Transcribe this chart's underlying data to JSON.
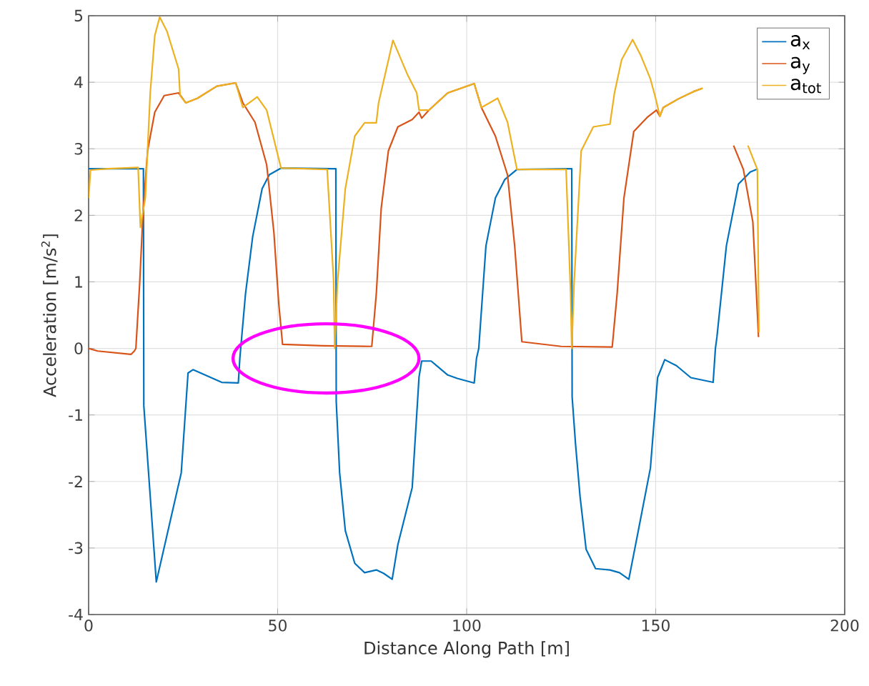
{
  "chart_data": {
    "type": "line",
    "xlabel": "Distance Along Path [m]",
    "ylabel": "Acceleration [m/s$^{2}$]",
    "xlim": [
      0,
      200
    ],
    "ylim": [
      -4,
      5
    ],
    "xticks": [
      0,
      50,
      100,
      150,
      200
    ],
    "yticks": [
      -4,
      -3,
      -2,
      -1,
      0,
      1,
      2,
      3,
      4,
      5
    ],
    "grid": true,
    "legend": "top right",
    "line_style": "solid",
    "marker": "none",
    "series": [
      {
        "name": "a$_{x}$",
        "color": "#0072bd",
        "x": [
          0,
          5,
          13,
          14.5,
          14.6,
          17.9,
          24.5,
          26.3,
          27.6,
          35.2,
          39.6,
          40,
          41.5,
          43.4,
          45.9,
          47.8,
          50.9,
          64.5,
          65.4,
          65.5,
          66.4,
          67.9,
          70.4,
          73,
          76.1,
          78,
          80.3,
          81.8,
          85.6,
          87.4,
          88.1,
          90.6,
          95,
          97.5,
          102,
          102.6,
          103.2,
          105.1,
          107.6,
          110.1,
          113.3,
          127.2,
          127.8,
          127.9,
          128.8,
          130,
          131.6,
          134.1,
          137.9,
          140.4,
          142.9,
          145.4,
          148.6,
          150.5,
          152.4,
          155.5,
          159.3,
          165.2,
          165.8,
          166.2,
          168.7,
          171.9,
          175,
          176.7
        ],
        "values": [
          2.7,
          2.7,
          2.7,
          2.7,
          -0.86,
          -3.51,
          -1.87,
          -0.37,
          -0.32,
          -0.51,
          -0.52,
          -0.15,
          0.82,
          1.68,
          2.4,
          2.61,
          2.71,
          2.7,
          2.7,
          -0.8,
          -1.87,
          -2.74,
          -3.23,
          -3.37,
          -3.33,
          -3.38,
          -3.47,
          -2.95,
          -2.09,
          -0.43,
          -0.19,
          -0.19,
          -0.4,
          -0.45,
          -0.52,
          -0.15,
          0,
          1.54,
          2.26,
          2.54,
          2.69,
          2.7,
          2.7,
          -0.73,
          -1.44,
          -2.23,
          -3.02,
          -3.31,
          -3.33,
          -3.37,
          -3.47,
          -2.74,
          -1.8,
          -0.44,
          -0.17,
          -0.26,
          -0.44,
          -0.51,
          0,
          0.17,
          1.54,
          2.47,
          2.65,
          2.69
        ]
      },
      {
        "name": "a$_{y}$",
        "color": "#d95319",
        "x": [
          0,
          2.4,
          11.2,
          12.1,
          12.5,
          13.5,
          14.4,
          15.6,
          17.5,
          20,
          23.8,
          25.7,
          28.8,
          33.9,
          38.9,
          40.8,
          44,
          47.1,
          49,
          50.3,
          51.3,
          62,
          74.9,
          76.1,
          77.4,
          79.3,
          81.8,
          85.6,
          87.4,
          88.1,
          90,
          95,
          102,
          103.9,
          107.6,
          110.8,
          112.7,
          114.6,
          125,
          138.5,
          139.8,
          141.6,
          144.2,
          147.9,
          150.2,
          151.1,
          152,
          156,
          160,
          162.4,
          166,
          170.6,
          173.2,
          175.7,
          176.9,
          177.2
        ],
        "values": [
          0,
          -0.04,
          -0.09,
          -0.04,
          0,
          0.97,
          2.05,
          2.97,
          3.55,
          3.8,
          3.84,
          3.69,
          3.76,
          3.94,
          3.99,
          3.69,
          3.4,
          2.76,
          1.75,
          0.67,
          0.06,
          0.04,
          0.03,
          0.82,
          2.11,
          2.97,
          3.33,
          3.44,
          3.55,
          3.46,
          3.58,
          3.84,
          3.98,
          3.62,
          3.19,
          2.61,
          1.54,
          0.1,
          0.03,
          0.02,
          0.82,
          2.26,
          3.26,
          3.48,
          3.58,
          3.49,
          3.62,
          3.75,
          3.86,
          3.91,
          null,
          3.05,
          2.69,
          1.9,
          0.53,
          0.17
        ]
      },
      {
        "name": "a$_{tot}$",
        "color": "#edb120",
        "x": [
          0,
          0.5,
          5,
          13.1,
          13.7,
          15,
          16.3,
          17.5,
          18.8,
          20.7,
          23.8,
          24.2,
          25.7,
          28.8,
          33.9,
          38.9,
          40.8,
          44.6,
          47.1,
          50.9,
          63.1,
          64.8,
          65.1,
          65.8,
          67.9,
          70.4,
          73,
          76.1,
          76.7,
          80.5,
          84.3,
          86.8,
          87.4,
          90,
          95,
          102,
          103.9,
          108.2,
          110.8,
          113.3,
          126.3,
          127.5,
          127.8,
          128.4,
          130.3,
          133.5,
          137.9,
          139.1,
          141,
          143.9,
          146,
          148.6,
          149.8,
          151.1,
          152,
          156,
          160,
          162.4,
          166,
          174.4,
          176.9,
          177.3
        ],
        "values": [
          2.26,
          2.68,
          2.7,
          2.72,
          1.82,
          2.26,
          3.84,
          4.7,
          4.98,
          4.77,
          4.2,
          3.8,
          3.69,
          3.76,
          3.94,
          3.99,
          3.62,
          3.78,
          3.58,
          2.71,
          2.69,
          1.03,
          0,
          0.97,
          2.4,
          3.19,
          3.39,
          3.39,
          3.69,
          4.63,
          4.12,
          3.84,
          3.58,
          3.58,
          3.84,
          3.98,
          3.62,
          3.76,
          3.4,
          2.69,
          2.69,
          0.82,
          0,
          0.96,
          2.97,
          3.33,
          3.37,
          3.84,
          4.34,
          4.64,
          4.41,
          4.05,
          3.8,
          3.49,
          3.62,
          3.75,
          3.86,
          3.91,
          null,
          3.05,
          2.69,
          0.24
        ]
      }
    ]
  }
}
